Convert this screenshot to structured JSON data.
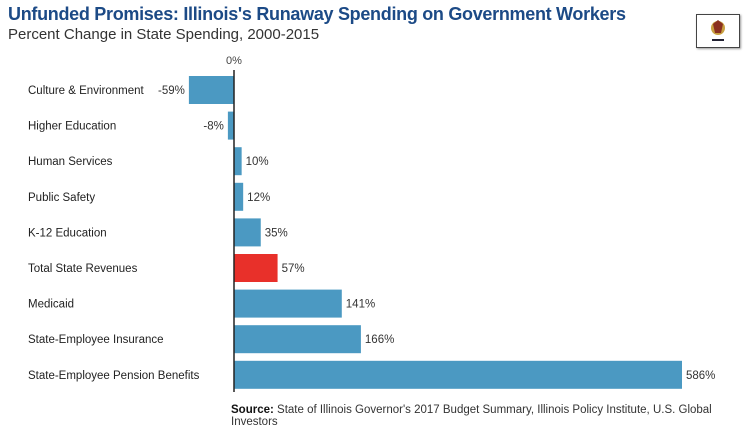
{
  "chart_data": {
    "type": "bar",
    "orientation": "horizontal",
    "title": "Unfunded Promises: Illinois's Runaway Spending on Government Workers",
    "subtitle": "Percent Change in State Spending, 2000-2015",
    "zero_label": "0%",
    "categories": [
      "Culture & Environment",
      "Higher Education",
      "Human Services",
      "Public Safety",
      "K-12 Education",
      "Total State Revenues",
      "Medicaid",
      "State-Employee Insurance",
      "State-Employee Pension Benefits"
    ],
    "values": [
      -59,
      -8,
      10,
      12,
      35,
      57,
      141,
      166,
      586
    ],
    "value_labels": [
      "-59%",
      "-8%",
      "10%",
      "12%",
      "35%",
      "57%",
      "141%",
      "166%",
      "586%"
    ],
    "highlight_index": 5,
    "xlim": [
      -59,
      586
    ],
    "grid": false,
    "colors": {
      "bar": "#4b99c2",
      "highlight": "#e8302a",
      "title": "#1c4a86"
    },
    "source_label": "Source:",
    "source": "State of Illinois Governor's 2017 Budget Summary, Illinois Policy Institute, U.S. Global Investors"
  },
  "logo": {
    "icon": "illinois-flag-icon"
  }
}
